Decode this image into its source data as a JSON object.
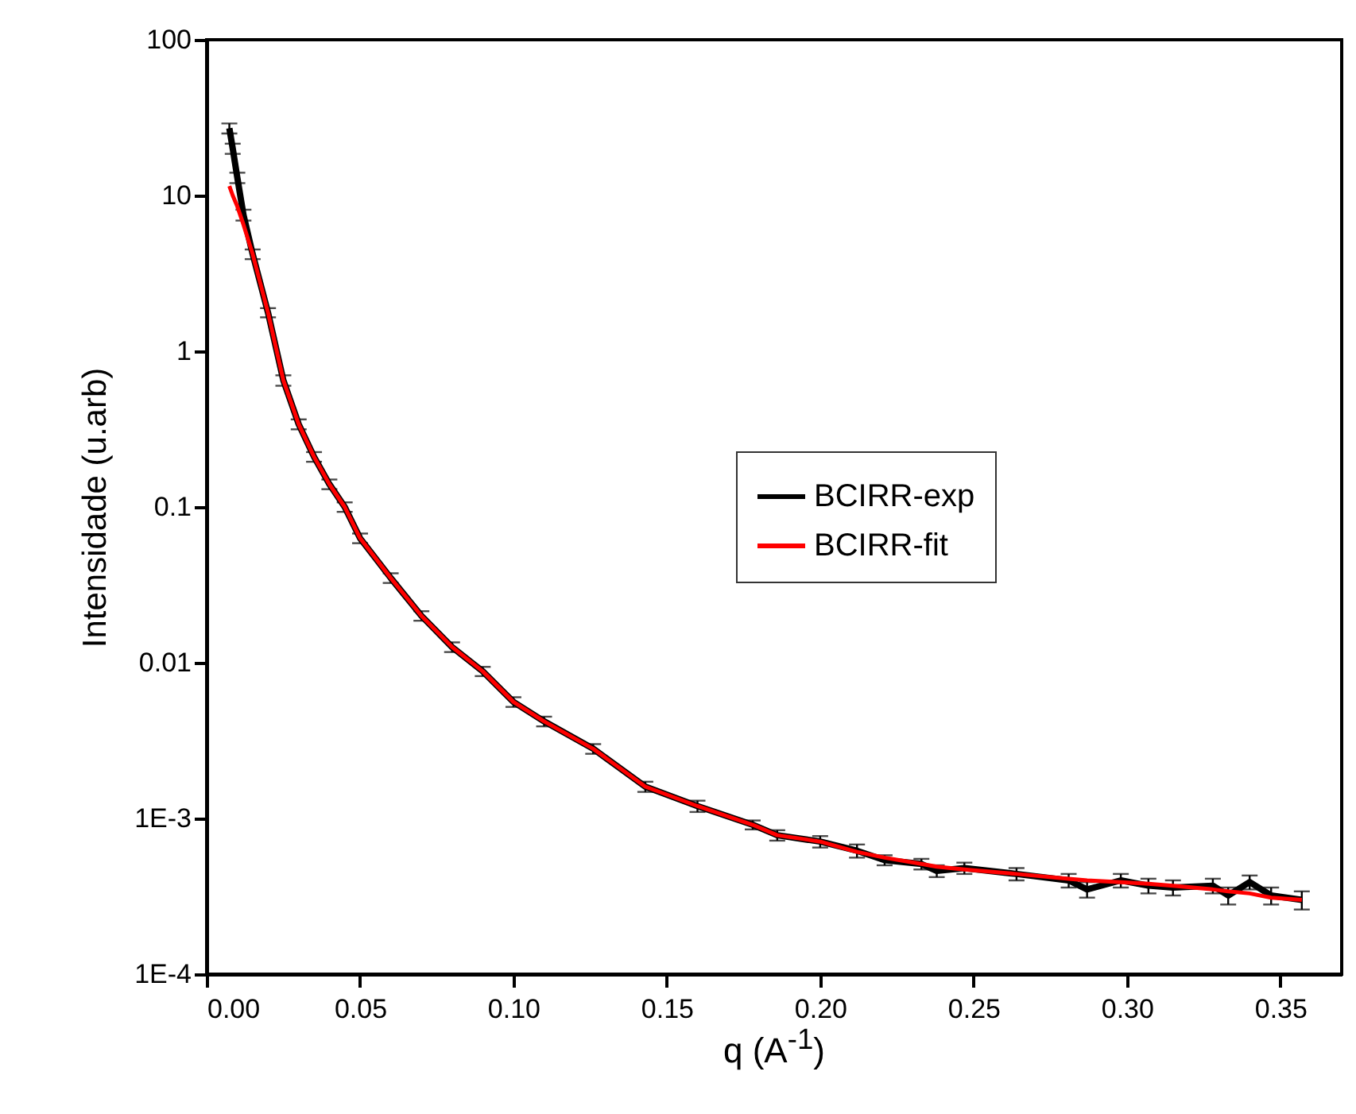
{
  "chart_data": {
    "type": "line",
    "xlabel": "q (A$^{-1}$)",
    "ylabel": "Intensidade (u.arb)",
    "log": "y",
    "grid": false,
    "legend": "right",
    "marker": "none",
    "line_style": "solid",
    "xlim": [
      0,
      0.37
    ],
    "ylim": [
      0.0001,
      100
    ],
    "xticks": [
      {
        "value": 0,
        "label": "0.00"
      },
      0.05,
      {
        "value": 0.1,
        "label": "0.10"
      },
      0.15,
      {
        "value": 0.2,
        "label": "0.20"
      },
      0.25,
      {
        "value": 0.3,
        "label": "0.30"
      },
      0.35
    ],
    "yticks": [
      {
        "value": 0.0001,
        "label": "1E-4"
      },
      {
        "value": 0.001,
        "label": "1E-3"
      },
      0.01,
      0.1,
      1,
      10,
      100
    ],
    "series": [
      {
        "name": "BCIRR-exp",
        "color": "#000000",
        "x": [
          0.0074,
          0.0085,
          0.01,
          0.012,
          0.015,
          0.02,
          0.025,
          0.03,
          0.035,
          0.04,
          0.045,
          0.05,
          0.06,
          0.07,
          0.08,
          0.09,
          0.1,
          0.11,
          0.126,
          0.143,
          0.16,
          0.178,
          0.186,
          0.2,
          0.212,
          0.221,
          0.233,
          0.238,
          0.247,
          0.264,
          0.281,
          0.287,
          0.298,
          0.307,
          0.315,
          0.328,
          0.333,
          0.34,
          0.347,
          0.357
        ],
        "values": [
          27,
          20,
          13,
          7.5,
          4.2,
          1.77,
          0.65,
          0.34,
          0.21,
          0.14,
          0.1,
          0.063,
          0.035,
          0.02,
          0.0126,
          0.0088,
          0.0056,
          0.0042,
          0.0028,
          0.0016,
          0.0012,
          0.00091,
          0.00078,
          0.00071,
          0.00062,
          0.00054,
          0.00051,
          0.00046,
          0.00048,
          0.00044,
          0.0004,
          0.00035,
          0.0004,
          0.00037,
          0.00036,
          0.00037,
          0.00032,
          0.00039,
          0.00032,
          0.0003
        ],
        "errors": [
          2,
          1.5,
          1,
          0.6,
          0.3,
          0.12,
          0.05,
          0.025,
          0.015,
          0.01,
          0.007,
          0.0045,
          0.0025,
          0.0014,
          0.0009,
          0.0006,
          0.0004,
          0.0003,
          0.0002,
          0.00012,
          0.0001,
          6e-05,
          6e-05,
          6e-05,
          6e-05,
          4e-05,
          4e-05,
          4e-05,
          4e-05,
          4e-05,
          4e-05,
          4e-05,
          4e-05,
          4e-05,
          4e-05,
          4e-05,
          4e-05,
          4e-05,
          4e-05,
          4e-05
        ]
      },
      {
        "name": "BCIRR-fit",
        "color": "#ff0000",
        "x": [
          0.0074,
          0.0085,
          0.01,
          0.012,
          0.015,
          0.02,
          0.025,
          0.03,
          0.035,
          0.04,
          0.045,
          0.05,
          0.06,
          0.07,
          0.08,
          0.09,
          0.1,
          0.11,
          0.126,
          0.143,
          0.16,
          0.178,
          0.186,
          0.2,
          0.212,
          0.221,
          0.233,
          0.238,
          0.247,
          0.264,
          0.281,
          0.287,
          0.298,
          0.307,
          0.315,
          0.328,
          0.333,
          0.34,
          0.347,
          0.357
        ],
        "values": [
          11.5,
          10,
          8.5,
          6.5,
          4.2,
          1.77,
          0.65,
          0.34,
          0.21,
          0.14,
          0.1,
          0.063,
          0.035,
          0.02,
          0.0126,
          0.0088,
          0.0056,
          0.0042,
          0.0028,
          0.0016,
          0.0012,
          0.00091,
          0.00078,
          0.00071,
          0.00061,
          0.00056,
          0.00051,
          0.00049,
          0.00047,
          0.00044,
          0.00041,
          0.0004,
          0.00039,
          0.00038,
          0.00037,
          0.00035,
          0.00034,
          0.00033,
          0.00031,
          0.0003
        ]
      }
    ]
  }
}
